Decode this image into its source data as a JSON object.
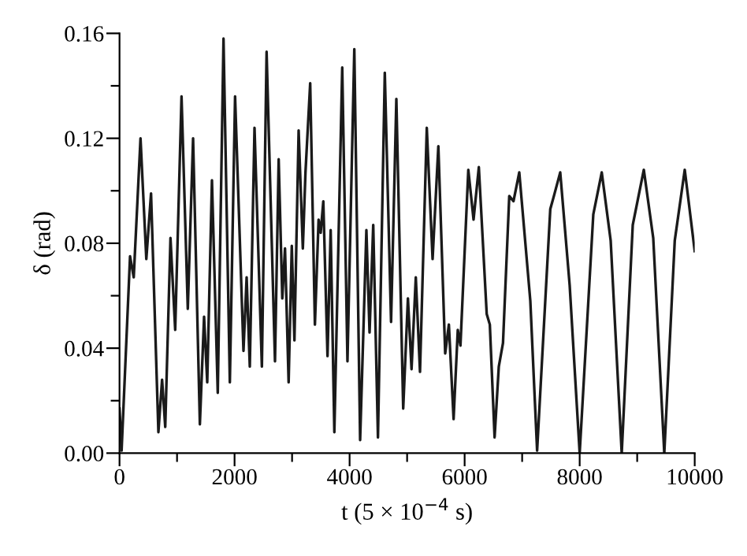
{
  "chart_data": {
    "type": "line",
    "xlabel": "t (5 × 10$^{−4}$ s)",
    "ylabel": "δ (rad)",
    "xlim": [
      0,
      10000
    ],
    "ylim": [
      0,
      0.16
    ],
    "xticks": [
      0,
      {
        "value": 1000,
        "label": null
      },
      2000,
      {
        "value": 3000,
        "label": null
      },
      4000,
      {
        "value": 5000,
        "label": null
      },
      6000,
      {
        "value": 7000,
        "label": null
      },
      8000,
      {
        "value": 9000,
        "label": null
      },
      10000
    ],
    "yticks": [
      {
        "value": 0,
        "label": "0.00"
      },
      {
        "value": 0.02,
        "label": null
      },
      {
        "value": 0.04,
        "label": "0.04"
      },
      {
        "value": 0.06,
        "label": null
      },
      {
        "value": 0.08,
        "label": "0.08"
      },
      {
        "value": 0.1,
        "label": null
      },
      {
        "value": 0.12,
        "label": "0.12"
      },
      {
        "value": 0.14,
        "label": null
      },
      {
        "value": 0.16,
        "label": "0.16"
      }
    ],
    "grid": false,
    "legend": false,
    "marker": "none",
    "line_style": "solid",
    "series": [
      {
        "color": "#1a1a1a",
        "x": [
          0,
          36,
          183,
          247,
          365,
          466,
          548,
          676,
          740,
          795,
          886,
          968,
          1078,
          1187,
          1279,
          1397,
          1470,
          1525,
          1607,
          1708,
          1808,
          1918,
          2009,
          2155,
          2210,
          2265,
          2347,
          2475,
          2557,
          2703,
          2767,
          2830,
          2877,
          2940,
          2995,
          3041,
          3114,
          3187,
          3233,
          3315,
          3397,
          3461,
          3497,
          3543,
          3616,
          3671,
          3735,
          3872,
          3963,
          4082,
          4183,
          4292,
          4347,
          4411,
          4493,
          4612,
          4721,
          4813,
          4932,
          5014,
          5077,
          5151,
          5224,
          5342,
          5443,
          5543,
          5662,
          5726,
          5808,
          5881,
          5927,
          6064,
          6155,
          6247,
          6384,
          6438,
          6521,
          6594,
          6667,
          6776,
          6849,
          6950,
          7142,
          7260,
          7489,
          7552,
          7662,
          7826,
          8000,
          8237,
          8384,
          8539,
          8731,
          8923,
          9115,
          9279,
          9471,
          9653,
          9827,
          10000
        ],
        "values": [
          0.017,
          0.001,
          0.075,
          0.067,
          0.12,
          0.074,
          0.099,
          0.008,
          0.028,
          0.01,
          0.082,
          0.047,
          0.136,
          0.055,
          0.12,
          0.011,
          0.052,
          0.027,
          0.104,
          0.023,
          0.158,
          0.027,
          0.136,
          0.039,
          0.067,
          0.033,
          0.124,
          0.033,
          0.153,
          0.035,
          0.112,
          0.059,
          0.078,
          0.027,
          0.079,
          0.043,
          0.123,
          0.078,
          0.107,
          0.141,
          0.049,
          0.089,
          0.084,
          0.096,
          0.037,
          0.085,
          0.008,
          0.147,
          0.035,
          0.154,
          0.005,
          0.085,
          0.046,
          0.087,
          0.006,
          0.145,
          0.05,
          0.135,
          0.017,
          0.059,
          0.032,
          0.067,
          0.031,
          0.124,
          0.074,
          0.117,
          0.038,
          0.049,
          0.013,
          0.047,
          0.041,
          0.108,
          0.089,
          0.109,
          0.053,
          0.049,
          0.006,
          0.033,
          0.042,
          0.098,
          0.096,
          0.107,
          0.058,
          0.001,
          0.093,
          0.098,
          0.107,
          0.064,
          0.0,
          0.091,
          0.107,
          0.081,
          0.0,
          0.087,
          0.108,
          0.082,
          0.0,
          0.081,
          0.108,
          0.077
        ]
      }
    ]
  }
}
